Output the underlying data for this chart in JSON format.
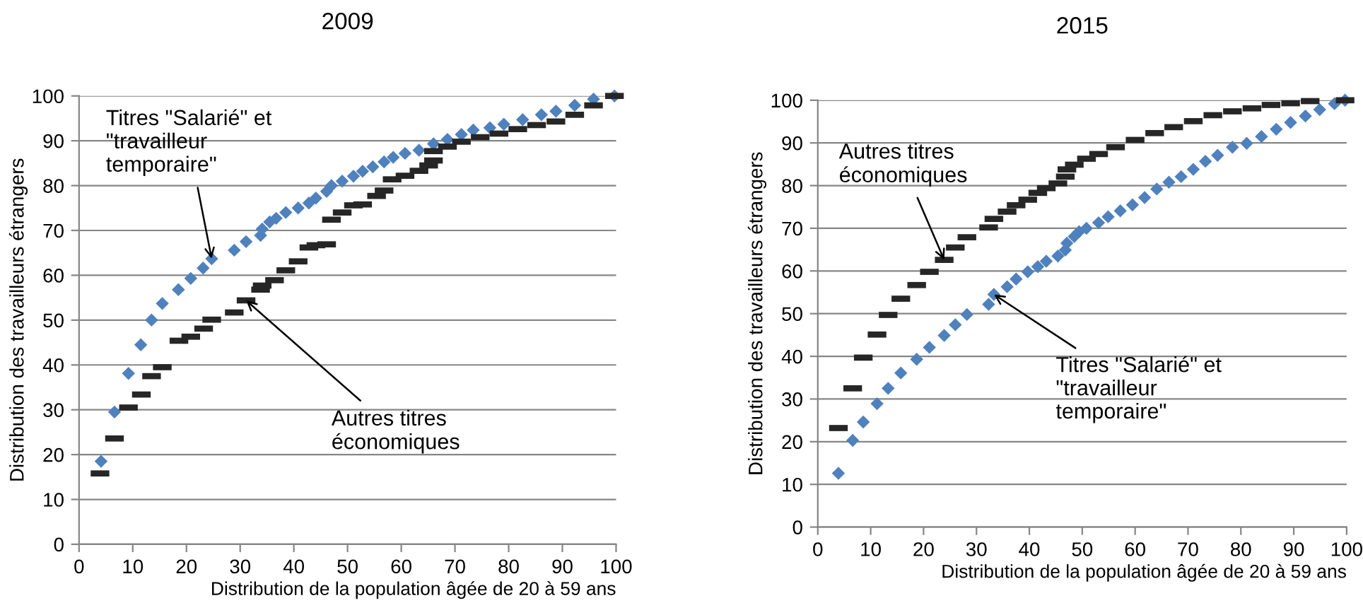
{
  "chart_data": [
    {
      "type": "scatter",
      "title": "2009",
      "xlabel": "Distribution de la population âgée de 20 à 59 ans",
      "ylabel": "Distribution des travailleurs étrangers",
      "xlim": [
        0,
        100
      ],
      "ylim": [
        0,
        100
      ],
      "xticks": [
        0,
        10,
        20,
        30,
        40,
        50,
        60,
        70,
        80,
        90,
        100
      ],
      "yticks": [
        0,
        10,
        20,
        30,
        40,
        50,
        60,
        70,
        80,
        90,
        100
      ],
      "grid": "y",
      "legend": false,
      "annotations": [
        {
          "text": "Titres \"Salarié\" et\n\"travailleur\ntemporaire\"",
          "x": 24.7,
          "y": 63.7
        },
        {
          "text": "Autres titres\néconomiques",
          "x": 31.1,
          "y": 54.4
        }
      ],
      "series": [
        {
          "color": "#4f81bd",
          "marker": "diamond",
          "x": [
            4.1,
            6.6,
            9.2,
            11.5,
            13.5,
            15.5,
            18.5,
            20.8,
            23.1,
            24.7,
            28.9,
            31.1,
            33.8,
            34.1,
            35.5,
            36.7,
            38.5,
            40.8,
            42.8,
            44.1,
            46.1,
            47,
            49,
            51.1,
            52.8,
            54.7,
            56.8,
            58.5,
            60.7,
            63.3,
            66,
            68.6,
            71.2,
            73.4,
            76.5,
            79.1,
            82.6,
            86.1,
            88.8,
            92.3,
            95.8,
            99.7
          ],
          "values": [
            18.5,
            29.5,
            38.1,
            44.5,
            50,
            53.7,
            56.8,
            59.3,
            61.6,
            63.7,
            65.6,
            67.5,
            68.9,
            70.3,
            71.9,
            72.7,
            74,
            75,
            76.1,
            77.2,
            78.7,
            80,
            81,
            82.1,
            83.2,
            84.2,
            85.3,
            86.3,
            87.2,
            87.9,
            89.3,
            90.3,
            91.4,
            92.4,
            92.9,
            93.7,
            94.7,
            95.8,
            96.6,
            97.9,
            99.3,
            100
          ]
        },
        {
          "color": "#262626",
          "x": [
            3.9,
            6.6,
            9.2,
            11.6,
            13.5,
            15.5,
            18.6,
            20.8,
            23.2,
            24.7,
            28.9,
            31.1,
            33.8,
            34.1,
            36.4,
            38.5,
            40.8,
            42.8,
            44.1,
            46.1,
            47,
            49,
            51.1,
            52.8,
            55.4,
            56.8,
            58.3,
            60.7,
            63.3,
            65.1,
            66,
            66,
            68.6,
            71.2,
            74.7,
            78.2,
            81.7,
            85.2,
            88.8,
            92.3,
            95.8,
            99.7
          ],
          "values": [
            15.8,
            23.6,
            30.5,
            33.4,
            37.5,
            39.5,
            45.4,
            46.3,
            48.1,
            50.1,
            51.7,
            54.4,
            56.8,
            57.7,
            58.9,
            61.1,
            63.1,
            66.2,
            66.7,
            66.9,
            72.4,
            74,
            75.6,
            75.8,
            77.7,
            78.9,
            81.4,
            82.2,
            83.3,
            84.5,
            85.6,
            87.7,
            88.7,
            89.8,
            90.8,
            91.6,
            92.6,
            93.5,
            94.3,
            95.8,
            97.9,
            100
          ]
        }
      ]
    },
    {
      "type": "scatter",
      "title": "2015",
      "xlabel": "Distribution de la population âgée de 20 à 59 ans",
      "ylabel": "Distribution des travailleurs étrangers",
      "xlim": [
        0,
        100
      ],
      "ylim": [
        0,
        100
      ],
      "xticks": [
        0,
        10,
        20,
        30,
        40,
        50,
        60,
        70,
        80,
        90,
        100
      ],
      "yticks": [
        0,
        10,
        20,
        30,
        40,
        50,
        60,
        70,
        80,
        90,
        100
      ],
      "grid": "y",
      "legend": false,
      "annotations": [
        {
          "text": "Autres titres\néconomiques",
          "x": 23.9,
          "y": 62.6
        },
        {
          "text": "Titres \"Salarié\" et\n\"travailleur\ntemporaire\"",
          "x": 33.3,
          "y": 54.5
        }
      ],
      "series": [
        {
          "color": "#4f81bd",
          "marker": "diamond",
          "x": [
            3.9,
            6.6,
            8.6,
            11.2,
            13.3,
            15.7,
            18.7,
            21.1,
            23.9,
            26,
            28.2,
            32.3,
            33.3,
            35.8,
            37.5,
            39.7,
            41.6,
            43.2,
            45.4,
            46.8,
            47.1,
            48.5,
            49.4,
            50.8,
            53.1,
            54.9,
            57.2,
            59.5,
            61.8,
            64.1,
            66.4,
            68.7,
            71,
            73.3,
            75.6,
            78.4,
            81.1,
            83.9,
            86.7,
            89.4,
            92.2,
            94.9,
            97.7,
            99.7
          ],
          "values": [
            12.6,
            20.3,
            24.6,
            28.9,
            32.5,
            36.1,
            39.3,
            42.1,
            44.9,
            47.4,
            49.8,
            52.2,
            54.5,
            56.3,
            58.1,
            59.8,
            61,
            62.3,
            63.5,
            64.9,
            66.5,
            68.1,
            69.2,
            70,
            71.3,
            72.7,
            74.1,
            75.5,
            77.2,
            79.2,
            80.8,
            82.1,
            83.8,
            85.7,
            87.1,
            89,
            89.9,
            91.5,
            93.2,
            94.8,
            96.3,
            97.8,
            99.2,
            100
          ]
        },
        {
          "color": "#262626",
          "x": [
            3.9,
            6.6,
            8.6,
            11.2,
            13.3,
            15.7,
            18.7,
            21.1,
            23.9,
            26,
            28.2,
            32.3,
            33.3,
            35.8,
            37.5,
            39.7,
            41.6,
            43.2,
            45.4,
            46.8,
            47.1,
            48.5,
            50.8,
            53.1,
            56.3,
            60,
            63.7,
            67.3,
            71,
            74.7,
            78.4,
            82.1,
            85.7,
            89.4,
            93.1,
            99.7
          ],
          "values": [
            23.2,
            32.5,
            39.7,
            45.1,
            49.7,
            53.5,
            56.7,
            59.8,
            62.6,
            65.5,
            67.9,
            70.2,
            72.2,
            73.9,
            75.4,
            76.7,
            78.3,
            79.4,
            80.5,
            82.1,
            83.8,
            84.9,
            86.3,
            87.4,
            89,
            90.7,
            92.3,
            93.7,
            95.1,
            96.5,
            97.4,
            98.1,
            98.9,
            99.3,
            99.8,
            100
          ]
        }
      ]
    }
  ]
}
